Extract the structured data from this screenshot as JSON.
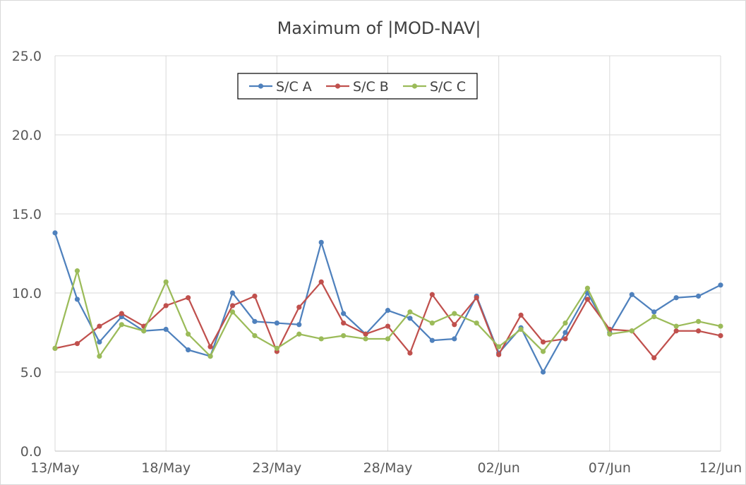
{
  "chart_data": {
    "type": "line",
    "title": "Maximum  of |MOD-NAV|",
    "xlabel": "",
    "ylabel": "",
    "ylim": [
      0,
      25
    ],
    "yticks": [
      "0.0",
      "5.0",
      "10.0",
      "15.0",
      "20.0",
      "25.0"
    ],
    "ytick_values": [
      0,
      5,
      10,
      15,
      20,
      25
    ],
    "xtick_labels": [
      "13/May",
      "18/May",
      "23/May",
      "28/May",
      "02/Jun",
      "07/Jun",
      "12/Jun"
    ],
    "xtick_dates": [
      "2015-05-13",
      "2015-05-18",
      "2015-05-23",
      "2015-05-28",
      "2015-06-02",
      "2015-06-07",
      "2015-06-12"
    ],
    "x": [
      "2015-05-13",
      "2015-05-14",
      "2015-05-15",
      "2015-05-16",
      "2015-05-17",
      "2015-05-18",
      "2015-05-19",
      "2015-05-20",
      "2015-05-21",
      "2015-05-22",
      "2015-05-23",
      "2015-05-24",
      "2015-05-25",
      "2015-05-26",
      "2015-05-27",
      "2015-05-28",
      "2015-05-29",
      "2015-05-30",
      "2015-05-31",
      "2015-06-01",
      "2015-06-02",
      "2015-06-03",
      "2015-06-04",
      "2015-06-05",
      "2015-06-06",
      "2015-06-07",
      "2015-06-08",
      "2015-06-09",
      "2015-06-10",
      "2015-06-11",
      "2015-06-12"
    ],
    "grid": true,
    "legend_position": "top-center",
    "series": [
      {
        "name": "S/C A",
        "color": "#4f81bd",
        "values": [
          13.8,
          9.6,
          6.9,
          8.5,
          7.6,
          7.7,
          6.4,
          6.0,
          10.0,
          8.2,
          8.1,
          8.0,
          13.2,
          8.7,
          7.4,
          8.9,
          8.4,
          7.0,
          7.1,
          9.8,
          6.2,
          7.8,
          5.0,
          7.5,
          10.0,
          7.5,
          9.9,
          8.8,
          9.7,
          9.8,
          10.5
        ]
      },
      {
        "name": "S/C B",
        "color": "#c0504d",
        "values": [
          6.5,
          6.8,
          7.9,
          8.7,
          7.9,
          9.2,
          9.7,
          6.6,
          9.2,
          9.8,
          6.3,
          9.1,
          10.7,
          8.1,
          7.4,
          7.9,
          6.2,
          9.9,
          8.0,
          9.7,
          6.1,
          8.6,
          6.9,
          7.1,
          9.6,
          7.7,
          7.6,
          5.9,
          7.6,
          7.6,
          7.3
        ]
      },
      {
        "name": "S/C C",
        "color": "#9bbb59",
        "values": [
          6.5,
          11.4,
          6.0,
          8.0,
          7.6,
          10.7,
          7.4,
          6.0,
          8.8,
          7.3,
          6.5,
          7.4,
          7.1,
          7.3,
          7.1,
          7.1,
          8.8,
          8.1,
          8.7,
          8.1,
          6.6,
          7.7,
          6.3,
          8.1,
          10.3,
          7.4,
          7.6,
          8.5,
          7.9,
          8.2,
          7.9
        ]
      }
    ]
  }
}
